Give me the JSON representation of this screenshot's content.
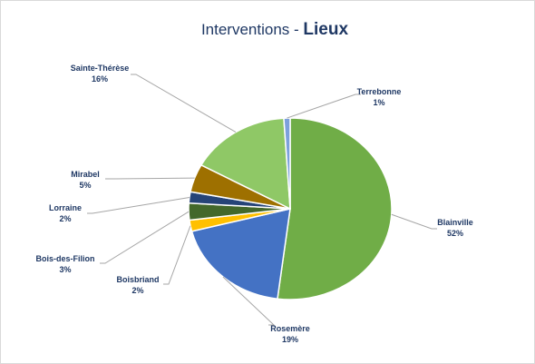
{
  "chart_data": {
    "type": "pie",
    "title": "Interventions -",
    "title_bold": "Lieux",
    "categories": [
      "Blainville",
      "Rosemère",
      "Boisbriand",
      "Bois-des-Filion",
      "Lorraine",
      "Mirabel",
      "Sainte-Thérèse",
      "Terrebonne"
    ],
    "values": [
      52,
      19,
      2,
      3,
      2,
      5,
      16,
      1
    ],
    "value_labels": [
      "52%",
      "19%",
      "2%",
      "3%",
      "2%",
      "5%",
      "16%",
      "1%"
    ],
    "colors": [
      "#70ad47",
      "#4472c4",
      "#ffc000",
      "#43682b",
      "#264478",
      "#9e7000",
      "#8fc866",
      "#7ca0dc"
    ]
  }
}
